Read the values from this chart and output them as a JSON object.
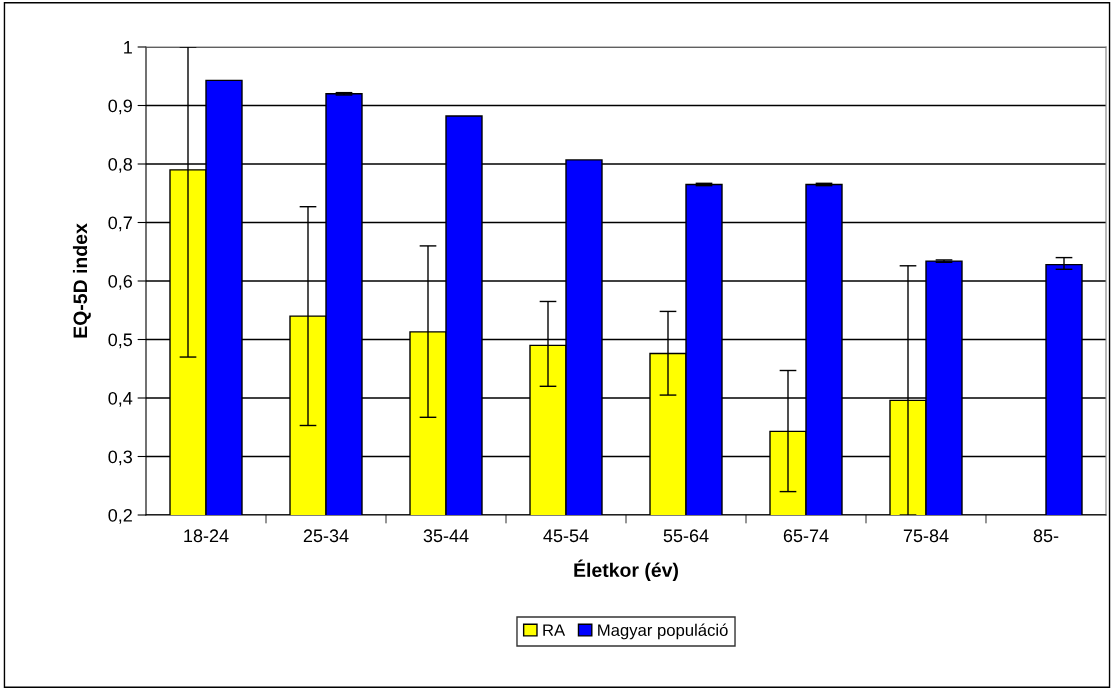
{
  "chart_data": {
    "type": "bar",
    "xlabel": "Életkor (év)",
    "ylabel": "EQ-5D index",
    "categories": [
      "18-24",
      "25-34",
      "35-44",
      "45-54",
      "55-64",
      "65-74",
      "75-84",
      "85-"
    ],
    "series": [
      {
        "name": "RA",
        "color": "#ffff00",
        "values": [
          0.79,
          0.54,
          0.513,
          0.49,
          0.476,
          0.343,
          0.396,
          null
        ],
        "errors": [
          [
            0.47,
            1.0
          ],
          [
            0.353,
            0.727
          ],
          [
            0.367,
            0.66
          ],
          [
            0.42,
            0.565
          ],
          [
            0.405,
            0.548
          ],
          [
            0.24,
            0.447
          ],
          [
            0.2,
            0.626
          ],
          null
        ]
      },
      {
        "name": "Magyar populáció",
        "color": "#0000ff",
        "values": [
          0.943,
          0.92,
          0.882,
          0.807,
          0.765,
          0.765,
          0.634,
          0.628
        ],
        "errors": [
          null,
          [
            0.918,
            0.922
          ],
          null,
          null,
          [
            0.763,
            0.767
          ],
          [
            0.763,
            0.767
          ],
          [
            0.632,
            0.636
          ],
          [
            0.62,
            0.64
          ]
        ]
      }
    ],
    "ylim": [
      0.2,
      1
    ],
    "yticks": [
      {
        "value": 0.2,
        "label": "0,2"
      },
      {
        "value": 0.3,
        "label": "0,3"
      },
      {
        "value": 0.4,
        "label": "0,4"
      },
      {
        "value": 0.5,
        "label": "0,5"
      },
      {
        "value": 0.6,
        "label": "0,6"
      },
      {
        "value": 0.7,
        "label": "0,7"
      },
      {
        "value": 0.8,
        "label": "0,8"
      },
      {
        "value": 0.9,
        "label": "0,9"
      },
      {
        "value": 1,
        "label": "1"
      }
    ],
    "grid": "y",
    "legend": "bottom"
  }
}
